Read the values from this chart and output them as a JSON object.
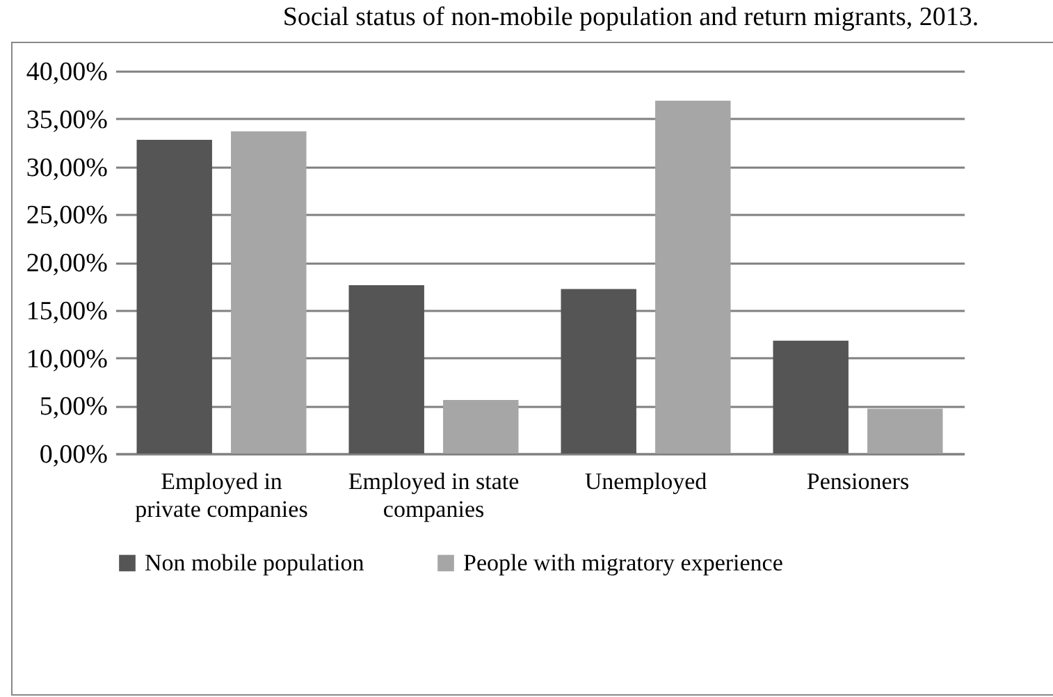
{
  "chart_data": {
    "type": "bar",
    "title": "Social status of non-mobile population and return migrants, 2013.",
    "categories": [
      "Employed in private companies",
      "Employed in state companies",
      "Unemployed",
      "Pensioners"
    ],
    "series": [
      {
        "name": "Non mobile population",
        "color": "#555555",
        "values": [
          32.8,
          17.6,
          17.2,
          11.8
        ]
      },
      {
        "name": "People with migratory experience",
        "color": "#a6a6a6",
        "values": [
          33.7,
          5.6,
          36.9,
          4.7
        ]
      }
    ],
    "ylim": [
      0,
      40
    ],
    "yticks": [
      {
        "value": 0,
        "label": "0,00%"
      },
      {
        "value": 5,
        "label": "5,00%"
      },
      {
        "value": 10,
        "label": "10,00%"
      },
      {
        "value": 15,
        "label": "15,00%"
      },
      {
        "value": 20,
        "label": "20,00%"
      },
      {
        "value": 25,
        "label": "25,00%"
      },
      {
        "value": 30,
        "label": "30,00%"
      },
      {
        "value": 35,
        "label": "35,00%"
      },
      {
        "value": 40,
        "label": "40,00%"
      }
    ],
    "grid": "y",
    "legend": "bottom"
  }
}
